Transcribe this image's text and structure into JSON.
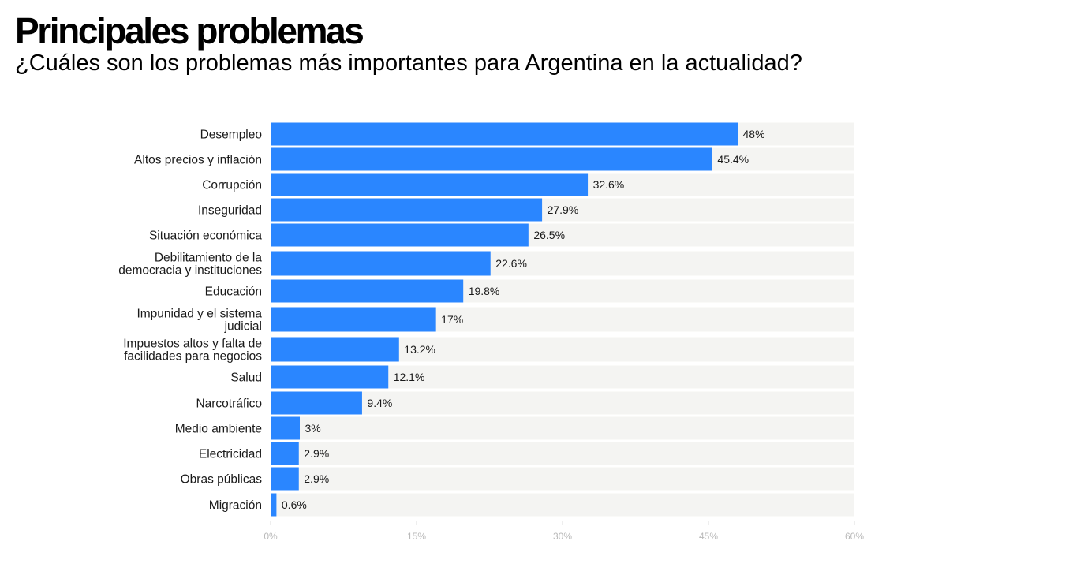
{
  "chart_data": {
    "type": "bar",
    "orientation": "horizontal",
    "title": "Principales problemas",
    "subtitle": "¿Cuáles son los problemas más importantes para Argentina en la actualidad?",
    "categories": [
      "Desempleo",
      "Altos precios y inflación",
      "Corrupción",
      "Inseguridad",
      "Situación económica",
      "Debilitamiento de la democracia y instituciones",
      "Educación",
      "Impunidad y el sistema judicial",
      "Impuestos altos y falta de facilidades para negocios",
      "Salud",
      "Narcotráfico",
      "Medio ambiente",
      "Electricidad",
      "Obras públicas",
      "Migración"
    ],
    "category_lines": [
      [
        "Desempleo"
      ],
      [
        "Altos precios y inflación"
      ],
      [
        "Corrupción"
      ],
      [
        "Inseguridad"
      ],
      [
        "Situación económica"
      ],
      [
        "Debilitamiento de la",
        "democracia y instituciones"
      ],
      [
        "Educación"
      ],
      [
        "Impunidad y el sistema",
        "judicial"
      ],
      [
        "Impuestos altos y falta de",
        "facilidades para negocios"
      ],
      [
        "Salud"
      ],
      [
        "Narcotráfico"
      ],
      [
        "Medio ambiente"
      ],
      [
        "Electricidad"
      ],
      [
        "Obras públicas"
      ],
      [
        "Migración"
      ]
    ],
    "values": [
      48,
      45.4,
      32.6,
      27.9,
      26.5,
      22.6,
      19.8,
      17,
      13.2,
      12.1,
      9.4,
      3,
      2.9,
      2.9,
      0.6
    ],
    "value_labels": [
      "48%",
      "45.4%",
      "32.6%",
      "27.9%",
      "26.5%",
      "22.6%",
      "19.8%",
      "17%",
      "13.2%",
      "12.1%",
      "9.4%",
      "3%",
      "2.9%",
      "2.9%",
      "0.6%"
    ],
    "xlim": [
      0,
      60
    ],
    "xticks": [
      0,
      15,
      30,
      45,
      60
    ],
    "xtick_labels": [
      "0%",
      "15%",
      "30%",
      "45%",
      "60%"
    ],
    "xlabel": "",
    "ylabel": "",
    "grid": false,
    "legend": "none",
    "colors": {
      "bar": "#2a86ff",
      "background_band": "#f4f4f2",
      "tick_text": "#b9b9b9",
      "text": "#1a1a1a"
    }
  }
}
